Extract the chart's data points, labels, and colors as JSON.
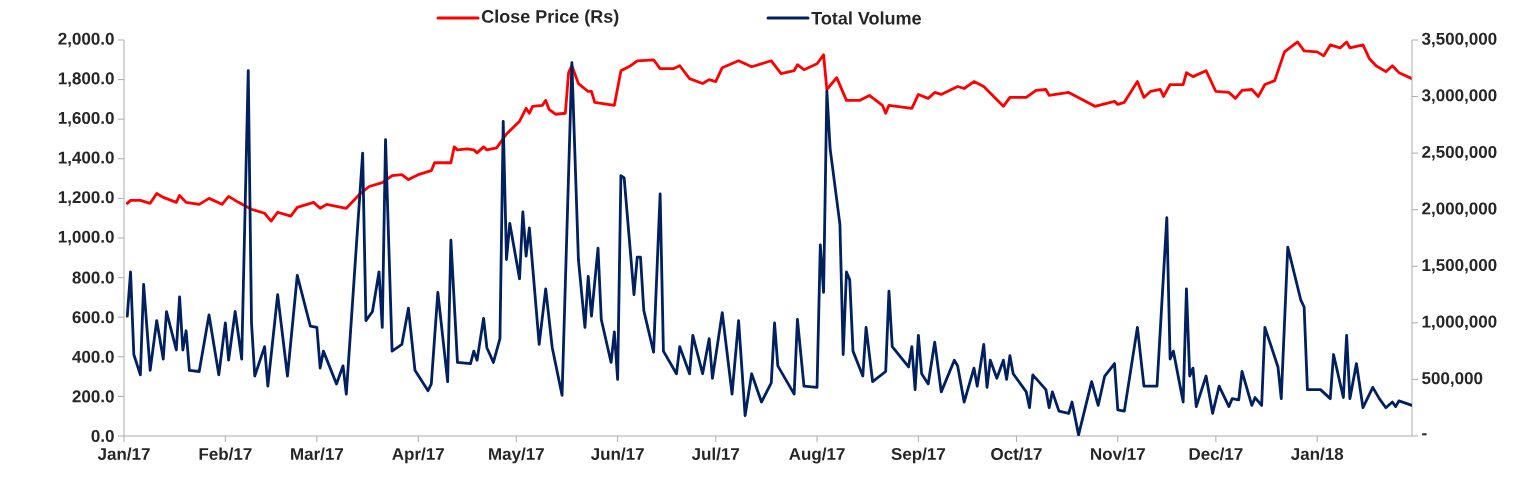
{
  "chart_data": {
    "type": "line",
    "legend": "top",
    "grid": false,
    "xlim": [
      "2017-01-01",
      "2018-01-30"
    ],
    "xticks": [
      {
        "value": "2017-01-01",
        "label": "Jan/17"
      },
      {
        "value": "2017-02-01",
        "label": "Feb/17"
      },
      {
        "value": "2017-03-01",
        "label": "Mar/17"
      },
      {
        "value": "2017-04-01",
        "label": "Apr/17"
      },
      {
        "value": "2017-05-01",
        "label": "May/17"
      },
      {
        "value": "2017-06-01",
        "label": "Jun/17"
      },
      {
        "value": "2017-07-01",
        "label": "Jul/17"
      },
      {
        "value": "2017-08-01",
        "label": "Aug/17"
      },
      {
        "value": "2017-09-01",
        "label": "Sep/17"
      },
      {
        "value": "2017-10-01",
        "label": "Oct/17"
      },
      {
        "value": "2017-11-01",
        "label": "Nov/17"
      },
      {
        "value": "2017-12-01",
        "label": "Dec/17"
      },
      {
        "value": "2018-01-01",
        "label": "Jan/18"
      }
    ],
    "ylim": [
      0,
      2000
    ],
    "yticks": [
      {
        "value": 0,
        "label": "0.0"
      },
      {
        "value": 200,
        "label": "200.0"
      },
      {
        "value": 400,
        "label": "400.0"
      },
      {
        "value": 600,
        "label": "600.0"
      },
      {
        "value": 800,
        "label": "800.0"
      },
      {
        "value": 1000,
        "label": "1,000.0"
      },
      {
        "value": 1200,
        "label": "1,200.0"
      },
      {
        "value": 1400,
        "label": "1,400.0"
      },
      {
        "value": 1600,
        "label": "1,600.0"
      },
      {
        "value": 1800,
        "label": "1,800.0"
      },
      {
        "value": 2000,
        "label": "2,000.0"
      }
    ],
    "y2lim": [
      0,
      3500000
    ],
    "y2ticks": [
      {
        "value": 0,
        "label": "-"
      },
      {
        "value": 500000,
        "label": "500,000"
      },
      {
        "value": 1000000,
        "label": "1,000,000"
      },
      {
        "value": 1500000,
        "label": "1,500,000"
      },
      {
        "value": 2000000,
        "label": "2,000,000"
      },
      {
        "value": 2500000,
        "label": "2,500,000"
      },
      {
        "value": 3000000,
        "label": "3,000,000"
      },
      {
        "value": 3500000,
        "label": "3,500,000"
      }
    ],
    "series": [
      {
        "name": "Close Price (Rs)",
        "color": "#ff0000",
        "x": [
          "2017-01-02",
          "2017-01-03",
          "2017-01-06",
          "2017-01-09",
          "2017-01-11",
          "2017-01-13",
          "2017-01-17",
          "2017-01-18",
          "2017-01-20",
          "2017-01-24",
          "2017-01-27",
          "2017-01-31",
          "2017-02-02",
          "2017-02-05",
          "2017-02-09",
          "2017-02-13",
          "2017-02-15",
          "2017-02-17",
          "2017-02-21",
          "2017-02-23",
          "2017-02-28",
          "2017-03-02",
          "2017-03-04",
          "2017-03-10",
          "2017-03-14",
          "2017-03-17",
          "2017-03-21",
          "2017-03-24",
          "2017-03-27",
          "2017-03-29",
          "2017-04-01",
          "2017-04-05",
          "2017-04-06",
          "2017-04-11",
          "2017-04-12",
          "2017-04-13",
          "2017-04-16",
          "2017-04-18",
          "2017-04-19",
          "2017-04-21",
          "2017-04-22",
          "2017-04-25",
          "2017-04-28",
          "2017-05-02",
          "2017-05-04",
          "2017-05-05",
          "2017-05-06",
          "2017-05-09",
          "2017-05-10",
          "2017-05-11",
          "2017-05-13",
          "2017-05-16",
          "2017-05-17",
          "2017-05-18",
          "2017-05-20",
          "2017-05-23",
          "2017-05-24",
          "2017-05-25",
          "2017-05-31",
          "2017-06-02",
          "2017-06-05",
          "2017-06-07",
          "2017-06-12",
          "2017-06-14",
          "2017-06-18",
          "2017-06-20",
          "2017-06-23",
          "2017-06-27",
          "2017-06-29",
          "2017-07-01",
          "2017-07-03",
          "2017-07-08",
          "2017-07-12",
          "2017-07-18",
          "2017-07-21",
          "2017-07-25",
          "2017-07-26",
          "2017-07-28",
          "2017-08-01",
          "2017-08-03",
          "2017-08-04",
          "2017-08-07",
          "2017-08-10",
          "2017-08-14",
          "2017-08-17",
          "2017-08-21",
          "2017-08-22",
          "2017-08-23",
          "2017-08-30",
          "2017-09-01",
          "2017-09-04",
          "2017-09-06",
          "2017-09-08",
          "2017-09-13",
          "2017-09-15",
          "2017-09-18",
          "2017-09-21",
          "2017-09-27",
          "2017-09-29",
          "2017-10-04",
          "2017-10-07",
          "2017-10-10",
          "2017-10-11",
          "2017-10-17",
          "2017-10-25",
          "2017-10-31",
          "2017-11-01",
          "2017-11-03",
          "2017-11-07",
          "2017-11-09",
          "2017-11-11",
          "2017-11-14",
          "2017-11-15",
          "2017-11-17",
          "2017-11-21",
          "2017-11-22",
          "2017-11-24",
          "2017-11-28",
          "2017-12-01",
          "2017-12-05",
          "2017-12-07",
          "2017-12-09",
          "2017-12-12",
          "2017-12-14",
          "2017-12-16",
          "2017-12-19",
          "2017-12-22",
          "2017-12-26",
          "2017-12-28",
          "2018-01-01",
          "2018-01-03",
          "2018-01-05",
          "2018-01-08",
          "2018-01-10",
          "2018-01-11",
          "2018-01-15",
          "2018-01-17",
          "2018-01-19",
          "2018-01-22",
          "2018-01-24",
          "2018-01-26",
          "2018-01-30"
        ],
        "values": [
          1175,
          1190,
          1190,
          1175,
          1225,
          1205,
          1180,
          1215,
          1180,
          1170,
          1200,
          1170,
          1210,
          1180,
          1145,
          1125,
          1085,
          1130,
          1110,
          1155,
          1180,
          1150,
          1170,
          1150,
          1220,
          1260,
          1280,
          1315,
          1320,
          1295,
          1320,
          1340,
          1380,
          1380,
          1460,
          1445,
          1450,
          1445,
          1430,
          1460,
          1445,
          1455,
          1525,
          1590,
          1655,
          1630,
          1665,
          1670,
          1695,
          1650,
          1625,
          1630,
          1835,
          1870,
          1780,
          1740,
          1740,
          1685,
          1670,
          1845,
          1870,
          1895,
          1900,
          1855,
          1855,
          1870,
          1805,
          1780,
          1800,
          1790,
          1860,
          1895,
          1865,
          1895,
          1830,
          1845,
          1875,
          1850,
          1880,
          1925,
          1750,
          1810,
          1695,
          1695,
          1720,
          1670,
          1630,
          1670,
          1655,
          1725,
          1705,
          1735,
          1725,
          1765,
          1755,
          1790,
          1765,
          1665,
          1710,
          1710,
          1745,
          1750,
          1720,
          1735,
          1665,
          1690,
          1675,
          1685,
          1790,
          1710,
          1740,
          1750,
          1715,
          1775,
          1775,
          1835,
          1815,
          1845,
          1740,
          1735,
          1705,
          1745,
          1750,
          1715,
          1775,
          1795,
          1940,
          1990,
          1945,
          1940,
          1920,
          1975,
          1960,
          1990,
          1960,
          1975,
          1905,
          1870,
          1840,
          1870,
          1835,
          1805
        ]
      },
      {
        "name": "Total Volume",
        "color": "#002060",
        "axis": "y2",
        "x": [
          "2017-01-02",
          "2017-01-03",
          "2017-01-04",
          "2017-01-06",
          "2017-01-07",
          "2017-01-09",
          "2017-01-11",
          "2017-01-13",
          "2017-01-14",
          "2017-01-17",
          "2017-01-18",
          "2017-01-19",
          "2017-01-20",
          "2017-01-21",
          "2017-01-24",
          "2017-01-27",
          "2017-01-30",
          "2017-02-01",
          "2017-02-02",
          "2017-02-04",
          "2017-02-06",
          "2017-02-08",
          "2017-02-09",
          "2017-02-10",
          "2017-02-13",
          "2017-02-14",
          "2017-02-17",
          "2017-02-20",
          "2017-02-23",
          "2017-02-27",
          "2017-03-01",
          "2017-03-02",
          "2017-03-03",
          "2017-03-07",
          "2017-03-09",
          "2017-03-10",
          "2017-03-15",
          "2017-03-16",
          "2017-03-18",
          "2017-03-20",
          "2017-03-21",
          "2017-03-22",
          "2017-03-24",
          "2017-03-27",
          "2017-03-29",
          "2017-03-31",
          "2017-04-04",
          "2017-04-05",
          "2017-04-07",
          "2017-04-10",
          "2017-04-11",
          "2017-04-13",
          "2017-04-17",
          "2017-04-18",
          "2017-04-19",
          "2017-04-21",
          "2017-04-22",
          "2017-04-24",
          "2017-04-26",
          "2017-04-27",
          "2017-04-28",
          "2017-04-29",
          "2017-05-02",
          "2017-05-03",
          "2017-05-04",
          "2017-05-05",
          "2017-05-08",
          "2017-05-10",
          "2017-05-12",
          "2017-05-15",
          "2017-05-18",
          "2017-05-20",
          "2017-05-22",
          "2017-05-23",
          "2017-05-24",
          "2017-05-26",
          "2017-05-27",
          "2017-05-30",
          "2017-05-31",
          "2017-06-01",
          "2017-06-02",
          "2017-06-03",
          "2017-06-06",
          "2017-06-07",
          "2017-06-08",
          "2017-06-09",
          "2017-06-12",
          "2017-06-14",
          "2017-06-15",
          "2017-06-19",
          "2017-06-20",
          "2017-06-23",
          "2017-06-24",
          "2017-06-27",
          "2017-06-29",
          "2017-06-30",
          "2017-07-03",
          "2017-07-06",
          "2017-07-08",
          "2017-07-10",
          "2017-07-12",
          "2017-07-15",
          "2017-07-18",
          "2017-07-19",
          "2017-07-20",
          "2017-07-25",
          "2017-07-26",
          "2017-07-28",
          "2017-08-01",
          "2017-08-02",
          "2017-08-03",
          "2017-08-04",
          "2017-08-05",
          "2017-08-08",
          "2017-08-09",
          "2017-08-10",
          "2017-08-11",
          "2017-08-12",
          "2017-08-15",
          "2017-08-16",
          "2017-08-18",
          "2017-08-22",
          "2017-08-23",
          "2017-08-24",
          "2017-08-29",
          "2017-08-30",
          "2017-08-31",
          "2017-09-01",
          "2017-09-02",
          "2017-09-04",
          "2017-09-06",
          "2017-09-08",
          "2017-09-12",
          "2017-09-13",
          "2017-09-15",
          "2017-09-18",
          "2017-09-19",
          "2017-09-21",
          "2017-09-22",
          "2017-09-23",
          "2017-09-25",
          "2017-09-27",
          "2017-09-28",
          "2017-09-29",
          "2017-09-30",
          "2017-10-04",
          "2017-10-05",
          "2017-10-06",
          "2017-10-10",
          "2017-10-11",
          "2017-10-12",
          "2017-10-14",
          "2017-10-17",
          "2017-10-18",
          "2017-10-20",
          "2017-10-24",
          "2017-10-26",
          "2017-10-28",
          "2017-10-31",
          "2017-11-01",
          "2017-11-03",
          "2017-11-07",
          "2017-11-09",
          "2017-11-13",
          "2017-11-16",
          "2017-11-17",
          "2017-11-18",
          "2017-11-21",
          "2017-11-22",
          "2017-11-23",
          "2017-11-24",
          "2017-11-25",
          "2017-11-28",
          "2017-11-30",
          "2017-12-02",
          "2017-12-05",
          "2017-12-06",
          "2017-12-08",
          "2017-12-09",
          "2017-12-12",
          "2017-12-13",
          "2017-12-15",
          "2017-12-16",
          "2017-12-20",
          "2017-12-21",
          "2017-12-23",
          "2017-12-27",
          "2017-12-28",
          "2017-12-29",
          "2018-01-02",
          "2018-01-05",
          "2018-01-06",
          "2018-01-09",
          "2018-01-10",
          "2018-01-11",
          "2018-01-13",
          "2018-01-15",
          "2018-01-18",
          "2018-01-20",
          "2018-01-22",
          "2018-01-24",
          "2018-01-25",
          "2018-01-26",
          "2018-01-30"
        ],
        "values": [
          1060000,
          1450000,
          720000,
          540000,
          1340000,
          580000,
          1020000,
          680000,
          1100000,
          760000,
          1230000,
          760000,
          930000,
          580000,
          570000,
          1070000,
          540000,
          1000000,
          670000,
          1100000,
          680000,
          3230000,
          1000000,
          530000,
          790000,
          440000,
          1250000,
          530000,
          1420000,
          970000,
          960000,
          600000,
          750000,
          460000,
          620000,
          370000,
          2500000,
          1020000,
          1100000,
          1450000,
          960000,
          2620000,
          750000,
          810000,
          1130000,
          580000,
          400000,
          460000,
          1270000,
          480000,
          1730000,
          650000,
          640000,
          750000,
          670000,
          1040000,
          780000,
          650000,
          860000,
          2780000,
          1560000,
          1880000,
          1390000,
          1980000,
          1590000,
          1840000,
          810000,
          1300000,
          780000,
          360000,
          3300000,
          1560000,
          960000,
          1410000,
          1060000,
          1660000,
          1030000,
          650000,
          920000,
          500000,
          2300000,
          2280000,
          1250000,
          1580000,
          1580000,
          1110000,
          740000,
          2140000,
          750000,
          550000,
          790000,
          550000,
          890000,
          550000,
          860000,
          510000,
          1090000,
          370000,
          1020000,
          180000,
          550000,
          300000,
          470000,
          1000000,
          620000,
          370000,
          1030000,
          440000,
          430000,
          1690000,
          1270000,
          3050000,
          2540000,
          1870000,
          720000,
          1450000,
          1380000,
          750000,
          530000,
          960000,
          480000,
          570000,
          1280000,
          790000,
          610000,
          790000,
          410000,
          890000,
          550000,
          460000,
          830000,
          390000,
          670000,
          620000,
          300000,
          600000,
          440000,
          810000,
          430000,
          670000,
          510000,
          670000,
          500000,
          710000,
          550000,
          390000,
          250000,
          540000,
          410000,
          250000,
          390000,
          220000,
          200000,
          300000,
          10000,
          480000,
          270000,
          530000,
          640000,
          230000,
          220000,
          960000,
          440000,
          440000,
          1930000,
          680000,
          750000,
          300000,
          1300000,
          530000,
          600000,
          260000,
          530000,
          200000,
          440000,
          260000,
          330000,
          320000,
          570000,
          270000,
          340000,
          270000,
          960000,
          610000,
          330000,
          1670000,
          1200000,
          1140000,
          410000,
          410000,
          330000,
          720000,
          340000,
          890000,
          330000,
          640000,
          250000,
          430000,
          330000,
          250000,
          300000,
          260000,
          310000,
          270000
        ]
      }
    ]
  }
}
